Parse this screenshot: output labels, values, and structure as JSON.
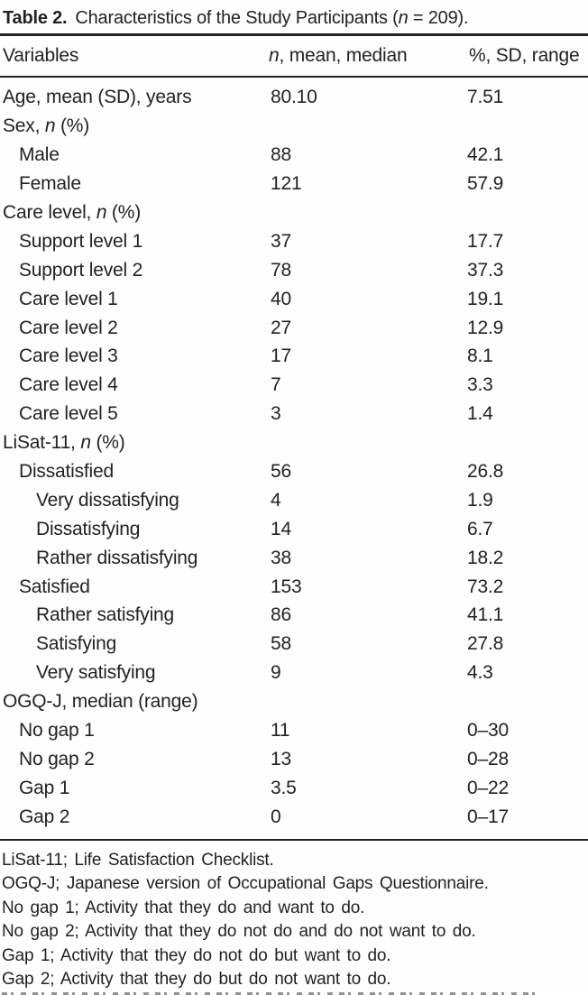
{
  "table": {
    "title": {
      "label": "Table 2.",
      "rest_before_n": "Characteristics of the Study Participants (",
      "n": "n",
      "rest_after_n": " = 209)."
    },
    "columns": {
      "variables": "Variables",
      "col2_n": "n",
      "col2_rest": ", mean, median",
      "col3": "%, SD, range"
    },
    "rows": [
      {
        "indent": 0,
        "pre": "Age, mean (SD), years",
        "it": "",
        "post": "",
        "col2": "80.10",
        "col3": "7.51"
      },
      {
        "indent": 0,
        "pre": "Sex, ",
        "it": "n",
        "post": " (%)",
        "col2": "",
        "col3": ""
      },
      {
        "indent": 1,
        "pre": "Male",
        "it": "",
        "post": "",
        "col2": "88",
        "col3": "42.1"
      },
      {
        "indent": 1,
        "pre": "Female",
        "it": "",
        "post": "",
        "col2": "121",
        "col3": "57.9"
      },
      {
        "indent": 0,
        "pre": "Care level, ",
        "it": "n",
        "post": " (%)",
        "col2": "",
        "col3": ""
      },
      {
        "indent": 1,
        "pre": "Support level 1",
        "it": "",
        "post": "",
        "col2": "37",
        "col3": "17.7"
      },
      {
        "indent": 1,
        "pre": "Support level 2",
        "it": "",
        "post": "",
        "col2": "78",
        "col3": "37.3"
      },
      {
        "indent": 1,
        "pre": "Care level 1",
        "it": "",
        "post": "",
        "col2": "40",
        "col3": "19.1"
      },
      {
        "indent": 1,
        "pre": "Care level 2",
        "it": "",
        "post": "",
        "col2": "27",
        "col3": "12.9"
      },
      {
        "indent": 1,
        "pre": "Care level 3",
        "it": "",
        "post": "",
        "col2": "17",
        "col3": "8.1"
      },
      {
        "indent": 1,
        "pre": "Care level 4",
        "it": "",
        "post": "",
        "col2": "7",
        "col3": "3.3"
      },
      {
        "indent": 1,
        "pre": "Care level 5",
        "it": "",
        "post": "",
        "col2": "3",
        "col3": "1.4"
      },
      {
        "indent": 0,
        "pre": "LiSat-11, ",
        "it": "n",
        "post": " (%)",
        "col2": "",
        "col3": ""
      },
      {
        "indent": 1,
        "pre": "Dissatisfied",
        "it": "",
        "post": "",
        "col2": "56",
        "col3": "26.8"
      },
      {
        "indent": 2,
        "pre": "Very dissatisfying",
        "it": "",
        "post": "",
        "col2": "4",
        "col3": "1.9"
      },
      {
        "indent": 2,
        "pre": "Dissatisfying",
        "it": "",
        "post": "",
        "col2": "14",
        "col3": "6.7"
      },
      {
        "indent": 2,
        "pre": "Rather dissatisfying",
        "it": "",
        "post": "",
        "col2": "38",
        "col3": "18.2"
      },
      {
        "indent": 1,
        "pre": "Satisfied",
        "it": "",
        "post": "",
        "col2": "153",
        "col3": "73.2"
      },
      {
        "indent": 2,
        "pre": "Rather satisfying",
        "it": "",
        "post": "",
        "col2": "86",
        "col3": "41.1"
      },
      {
        "indent": 2,
        "pre": "Satisfying",
        "it": "",
        "post": "",
        "col2": "58",
        "col3": "27.8"
      },
      {
        "indent": 2,
        "pre": "Very satisfying",
        "it": "",
        "post": "",
        "col2": "9",
        "col3": "4.3"
      },
      {
        "indent": 0,
        "pre": "OGQ-J, median (range)",
        "it": "",
        "post": "",
        "col2": "",
        "col3": ""
      },
      {
        "indent": 1,
        "pre": "No gap 1",
        "it": "",
        "post": "",
        "col2": "11",
        "col3": "0–30"
      },
      {
        "indent": 1,
        "pre": "No gap 2",
        "it": "",
        "post": "",
        "col2": "13",
        "col3": "0–28"
      },
      {
        "indent": 1,
        "pre": "Gap 1",
        "it": "",
        "post": "",
        "col2": "3.5",
        "col3": "0–22"
      },
      {
        "indent": 1,
        "pre": "Gap 2",
        "it": "",
        "post": "",
        "col2": "0",
        "col3": "0–17"
      }
    ],
    "footnotes": [
      "LiSat-11; Life Satisfaction Checklist.",
      "OGQ-J; Japanese version of Occupational Gaps Questionnaire.",
      "No gap 1; Activity that they do and want to do.",
      "No gap 2; Activity that they do not do and do not want to do.",
      "Gap 1; Activity that they do not do but want to do.",
      "Gap 2; Activity that they do but do not want to do."
    ],
    "text_color": "#242122"
  }
}
